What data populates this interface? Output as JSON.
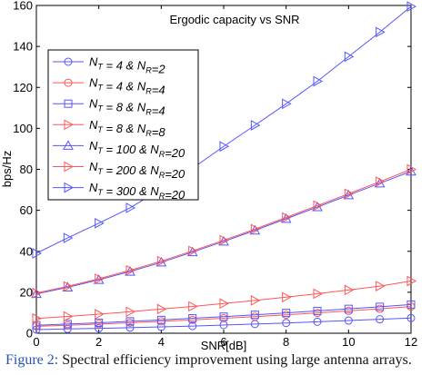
{
  "chart_data": {
    "type": "line",
    "title": "Ergodic capacity vs SNR",
    "xlabel": "SNR[dB]",
    "ylabel": "bps/Hz",
    "xlim": [
      0,
      12
    ],
    "ylim": [
      0,
      160
    ],
    "xticks": [
      0,
      2,
      4,
      6,
      8,
      10,
      12
    ],
    "yticks": [
      0,
      20,
      40,
      60,
      80,
      100,
      120,
      140,
      160
    ],
    "grid": false,
    "legend_position": "top-left",
    "x": [
      0,
      1,
      2,
      3,
      4,
      5,
      6,
      7,
      8,
      9,
      10,
      11,
      12
    ],
    "series": [
      {
        "name": "NT = 4 & NR=2",
        "legend": {
          "a": "4",
          "b": "2"
        },
        "marker": "circle",
        "color": "#5555ff",
        "values": [
          1.8,
          2.1,
          2.4,
          2.7,
          3.1,
          3.5,
          4.0,
          4.5,
          5.0,
          5.6,
          6.2,
          6.8,
          7.4
        ]
      },
      {
        "name": "NT = 4 & NR=4",
        "legend": {
          "a": "4",
          "b": "4"
        },
        "marker": "circle",
        "color": "#ff5555",
        "values": [
          3.4,
          3.9,
          4.5,
          5.1,
          5.8,
          6.5,
          7.3,
          8.1,
          9.0,
          9.9,
          10.9,
          11.9,
          13.0
        ]
      },
      {
        "name": "NT = 8 & NR=4",
        "legend": {
          "a": "8",
          "b": "4"
        },
        "marker": "square",
        "color": "#5555ff",
        "values": [
          3.9,
          4.5,
          5.1,
          5.8,
          6.5,
          7.3,
          8.1,
          9.0,
          9.9,
          10.9,
          11.9,
          12.9,
          14.0
        ]
      },
      {
        "name": "NT = 8 & NR=8",
        "legend": {
          "a": "8",
          "b": "8"
        },
        "marker": "triangle-right",
        "color": "#ff5555",
        "values": [
          7.2,
          8.2,
          9.3,
          10.5,
          11.8,
          13.1,
          14.5,
          16.0,
          17.6,
          19.3,
          21.1,
          23.0,
          25.5
        ]
      },
      {
        "name": "NT = 100 & NR=20",
        "legend": {
          "a": "100",
          "b": "20"
        },
        "marker": "triangle-up",
        "color": "#5555ff",
        "values": [
          19.2,
          22.4,
          26.1,
          30.1,
          34.6,
          39.6,
          44.8,
          50.2,
          55.9,
          61.6,
          67.4,
          73.2,
          79.0
        ]
      },
      {
        "name": "NT = 200 & NR=20",
        "legend": {
          "a": "200",
          "b": "20"
        },
        "marker": "triangle-right",
        "color": "#ff5555",
        "values": [
          19.6,
          22.9,
          26.6,
          30.7,
          35.2,
          40.2,
          45.4,
          50.8,
          56.5,
          62.3,
          68.1,
          74.0,
          80.0
        ]
      },
      {
        "name": "NT = 300 & NR=20",
        "legend": {
          "a": "300",
          "b": "20"
        },
        "marker": "triangle-right",
        "color": "#5555ff",
        "values": [
          39.0,
          46.5,
          53.7,
          61.2,
          70.4,
          80.5,
          91.2,
          101.5,
          112.0,
          123.0,
          135.0,
          147.0,
          159.5
        ]
      }
    ]
  },
  "caption": {
    "label": "Figure 2:",
    "text": " Spectral efficiency improvement using large antenna arrays."
  }
}
